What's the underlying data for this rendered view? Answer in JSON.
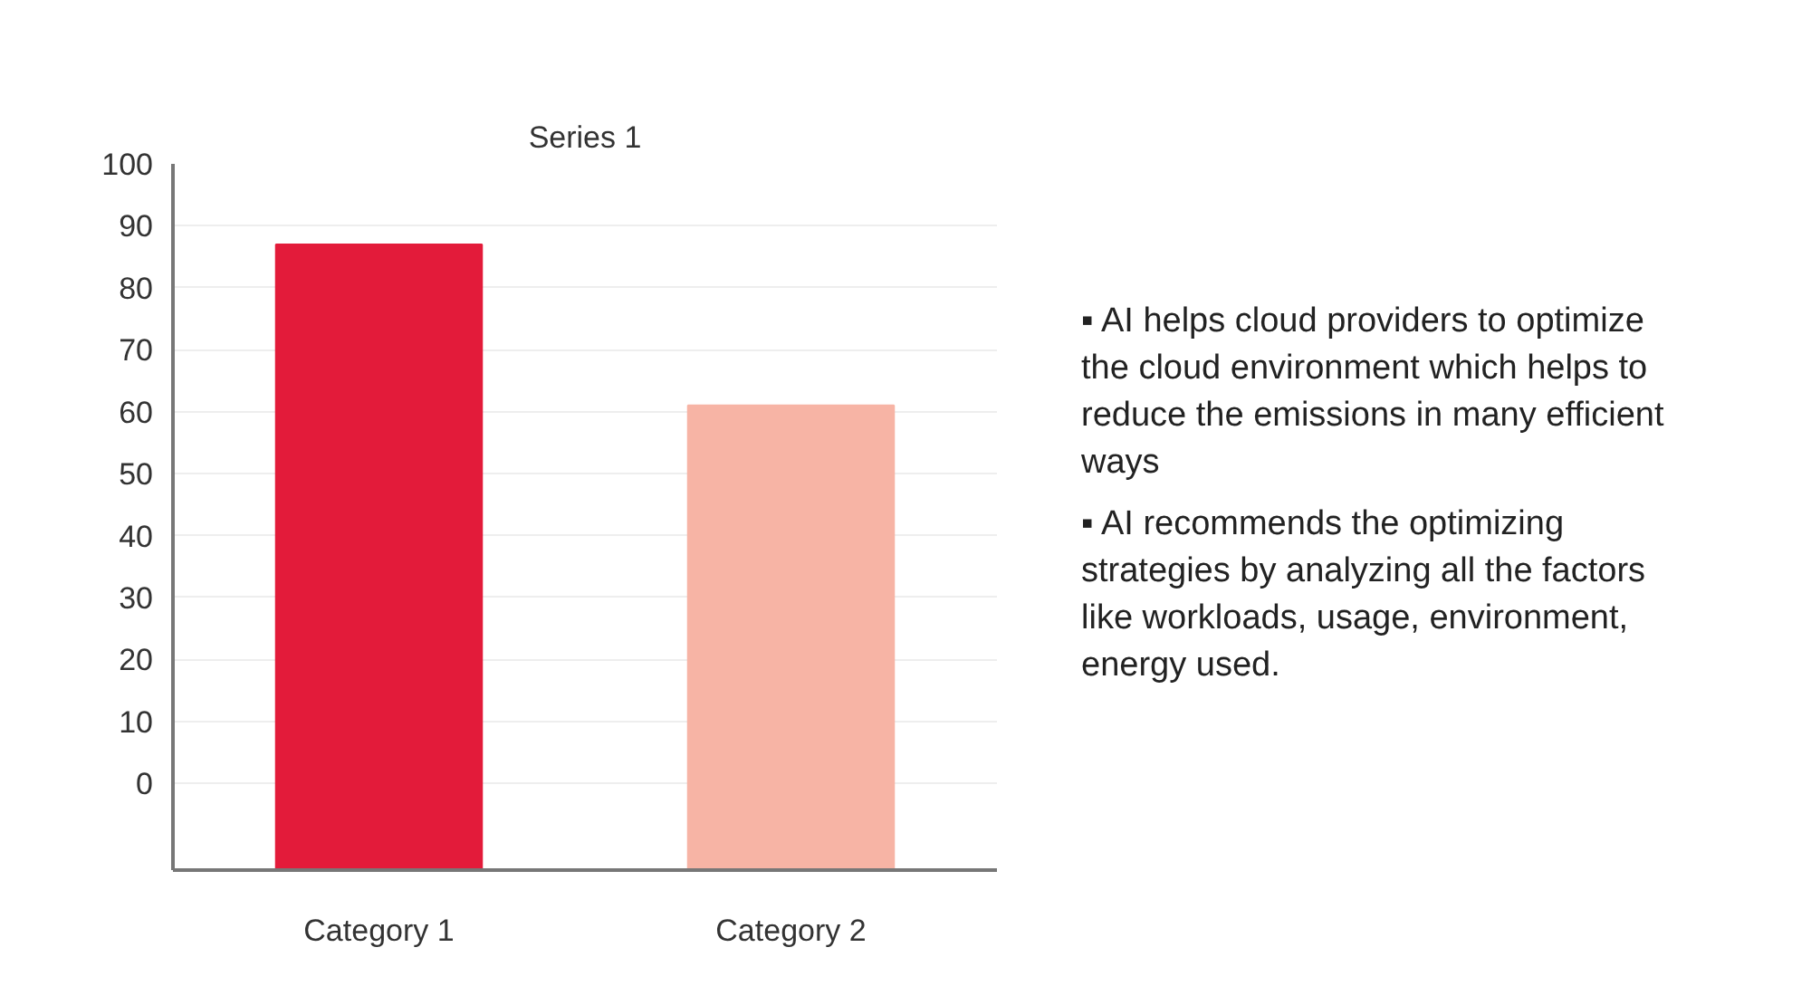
{
  "chart_data": {
    "type": "bar",
    "title": "Series 1",
    "categories": [
      "Category 1",
      "Category 2"
    ],
    "values": [
      101,
      75
    ],
    "base": [
      -14,
      -14
    ],
    "colors": [
      "#e31b3a",
      "#f7b4a5"
    ],
    "ylim": [
      -14,
      100
    ],
    "yticks": [
      0,
      10,
      20,
      30,
      40,
      50,
      60,
      70,
      80,
      90,
      100
    ],
    "grid": "y",
    "annotations": [
      "▪ AI helps cloud providers to optimize the cloud environment which helps to reduce the emissions in many efficient ways",
      "▪ AI recommends the optimizing strategies by analyzing all the factors like workloads, usage, environment, energy used."
    ]
  }
}
